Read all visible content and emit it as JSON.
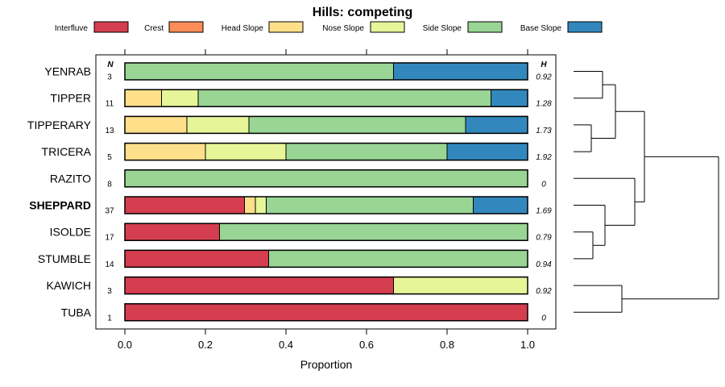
{
  "chart_data": {
    "type": "bar",
    "orientation": "horizontal",
    "stacked": true,
    "title": "Hills: competing",
    "xlabel": "Proportion",
    "xlim": [
      0,
      1
    ],
    "x_ticks": [
      "0.0",
      "0.2",
      "0.4",
      "0.6",
      "0.8",
      "1.0"
    ],
    "x_tick_values": [
      0,
      0.2,
      0.4,
      0.6,
      0.8,
      1.0
    ],
    "n_header": "N",
    "h_header": "H",
    "legend": [
      {
        "name": "Interfluve",
        "color": "#d53e4f"
      },
      {
        "name": "Crest",
        "color": "#fc8d59"
      },
      {
        "name": "Head Slope",
        "color": "#fee08b"
      },
      {
        "name": "Nose Slope",
        "color": "#e6f598"
      },
      {
        "name": "Side Slope",
        "color": "#99d594"
      },
      {
        "name": "Base Slope",
        "color": "#3288bd"
      }
    ],
    "categories": [
      "YENRAB",
      "TIPPER",
      "TIPPERARY",
      "TRICERA",
      "RAZITO",
      "SHEPPARD",
      "ISOLDE",
      "STUMBLE",
      "KAWICH",
      "TUBA"
    ],
    "highlighted": "SHEPPARD",
    "n_values": [
      "3",
      "11",
      "13",
      "5",
      "8",
      "37",
      "17",
      "14",
      "3",
      "1"
    ],
    "h_values": [
      "0.92",
      "1.28",
      "1.73",
      "1.92",
      "0",
      "1.69",
      "0.79",
      "0.94",
      "0.92",
      "0"
    ],
    "series": [
      {
        "name": "Interfluve",
        "values": [
          0,
          0,
          0,
          0,
          0,
          0.297,
          0.235,
          0.357,
          0.667,
          1.0
        ]
      },
      {
        "name": "Crest",
        "values": [
          0,
          0,
          0,
          0,
          0,
          0,
          0,
          0,
          0,
          0
        ]
      },
      {
        "name": "Head Slope",
        "values": [
          0,
          0.091,
          0.154,
          0.2,
          0,
          0.027,
          0,
          0,
          0,
          0
        ]
      },
      {
        "name": "Nose Slope",
        "values": [
          0,
          0.091,
          0.154,
          0.2,
          0,
          0.027,
          0,
          0,
          0.333,
          0
        ]
      },
      {
        "name": "Side Slope",
        "values": [
          0.667,
          0.727,
          0.538,
          0.4,
          1.0,
          0.514,
          0.765,
          0.643,
          0,
          0
        ]
      },
      {
        "name": "Base Slope",
        "values": [
          0.333,
          0.091,
          0.154,
          0.2,
          0,
          0.135,
          0,
          0,
          0,
          0
        ]
      }
    ],
    "dendrogram": "hierarchical clustering of series shown at right"
  }
}
